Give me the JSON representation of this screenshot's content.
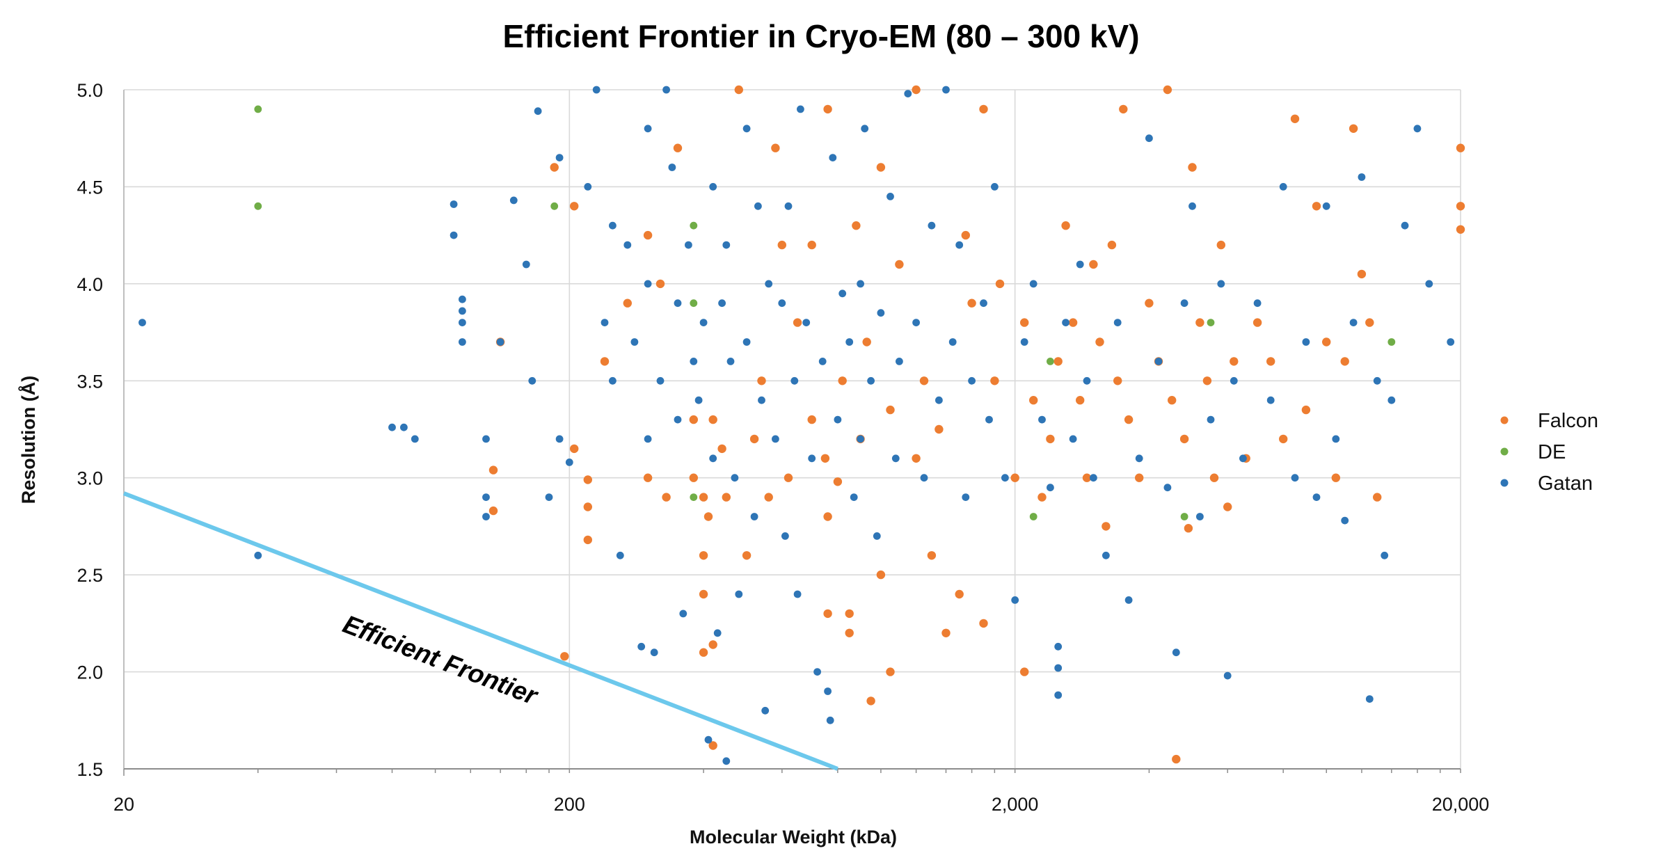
{
  "chart_data": {
    "type": "scatter",
    "title": "Efficient Frontier in Cryo-EM (80 – 300 kV)",
    "xlabel": "Molecular Weight (kDa)",
    "ylabel": "Resolution (Å)",
    "x_scale": "log",
    "xlim": [
      20,
      20000
    ],
    "ylim": [
      1.5,
      5.0
    ],
    "x_ticks": [
      20,
      200,
      2000,
      20000
    ],
    "x_tick_labels": [
      "20",
      "200",
      "2,000",
      "20,000"
    ],
    "y_ticks": [
      1.5,
      2.0,
      2.5,
      3.0,
      3.5,
      4.0,
      4.5,
      5.0
    ],
    "y_tick_labels": [
      "1.5",
      "2.0",
      "2.5",
      "3.0",
      "3.5",
      "4.0",
      "4.5",
      "5.0"
    ],
    "grid": true,
    "legend_position": "right",
    "annotation": {
      "text": "Efficient Frontier",
      "line": [
        [
          20,
          2.92
        ],
        [
          800,
          1.5
        ]
      ],
      "color": "#6cc8ec"
    },
    "series": [
      {
        "name": "Falcon",
        "color": "#ed7d31",
        "points": [
          [
            140,
            3.7
          ],
          [
            135,
            3.04
          ],
          [
            135,
            2.83
          ],
          [
            185,
            4.6
          ],
          [
            195,
            2.08
          ],
          [
            205,
            4.4
          ],
          [
            205,
            3.15
          ],
          [
            220,
            2.99
          ],
          [
            220,
            2.85
          ],
          [
            220,
            2.68
          ],
          [
            240,
            3.6
          ],
          [
            270,
            3.9
          ],
          [
            300,
            4.25
          ],
          [
            300,
            3.0
          ],
          [
            320,
            4.0
          ],
          [
            330,
            2.9
          ],
          [
            350,
            4.7
          ],
          [
            380,
            3.3
          ],
          [
            380,
            3.0
          ],
          [
            400,
            2.9
          ],
          [
            400,
            2.6
          ],
          [
            400,
            2.1
          ],
          [
            400,
            2.4
          ],
          [
            410,
            2.8
          ],
          [
            420,
            3.3
          ],
          [
            420,
            2.14
          ],
          [
            420,
            1.62
          ],
          [
            440,
            3.15
          ],
          [
            450,
            2.9
          ],
          [
            480,
            5.0
          ],
          [
            500,
            2.6
          ],
          [
            520,
            3.2
          ],
          [
            540,
            3.5
          ],
          [
            560,
            2.9
          ],
          [
            580,
            4.7
          ],
          [
            600,
            4.2
          ],
          [
            620,
            3.0
          ],
          [
            650,
            3.8
          ],
          [
            700,
            3.3
          ],
          [
            700,
            4.2
          ],
          [
            750,
            3.1
          ],
          [
            760,
            2.8
          ],
          [
            760,
            2.3
          ],
          [
            760,
            4.9
          ],
          [
            800,
            2.98
          ],
          [
            820,
            3.5
          ],
          [
            850,
            2.3
          ],
          [
            850,
            2.2
          ],
          [
            880,
            4.3
          ],
          [
            900,
            3.2
          ],
          [
            930,
            3.7
          ],
          [
            950,
            1.85
          ],
          [
            1000,
            2.5
          ],
          [
            1000,
            4.6
          ],
          [
            1050,
            2.0
          ],
          [
            1050,
            3.35
          ],
          [
            1100,
            4.1
          ],
          [
            1200,
            3.1
          ],
          [
            1200,
            5.0
          ],
          [
            1250,
            3.5
          ],
          [
            1300,
            2.6
          ],
          [
            1350,
            3.25
          ],
          [
            1400,
            2.2
          ],
          [
            1500,
            2.4
          ],
          [
            1550,
            4.25
          ],
          [
            1600,
            3.9
          ],
          [
            1700,
            4.9
          ],
          [
            1700,
            2.25
          ],
          [
            1800,
            3.5
          ],
          [
            1850,
            4.0
          ],
          [
            2000,
            3.0
          ],
          [
            2100,
            2.0
          ],
          [
            2100,
            3.8
          ],
          [
            2200,
            3.4
          ],
          [
            2300,
            2.9
          ],
          [
            2400,
            3.2
          ],
          [
            2500,
            3.6
          ],
          [
            2600,
            4.3
          ],
          [
            2700,
            3.8
          ],
          [
            2800,
            3.4
          ],
          [
            2900,
            3.0
          ],
          [
            3000,
            4.1
          ],
          [
            3100,
            3.7
          ],
          [
            3200,
            2.75
          ],
          [
            3300,
            4.2
          ],
          [
            3400,
            3.5
          ],
          [
            3500,
            4.9
          ],
          [
            3600,
            3.3
          ],
          [
            3800,
            3.0
          ],
          [
            4000,
            3.9
          ],
          [
            4200,
            3.6
          ],
          [
            4400,
            5.0
          ],
          [
            4500,
            3.4
          ],
          [
            4600,
            1.55
          ],
          [
            4800,
            3.2
          ],
          [
            4900,
            2.74
          ],
          [
            5000,
            4.6
          ],
          [
            5200,
            3.8
          ],
          [
            5400,
            3.5
          ],
          [
            5600,
            3.0
          ],
          [
            5800,
            4.2
          ],
          [
            6000,
            2.85
          ],
          [
            6200,
            3.6
          ],
          [
            6600,
            3.1
          ],
          [
            7000,
            3.8
          ],
          [
            7500,
            3.6
          ],
          [
            8000,
            3.2
          ],
          [
            8500,
            4.85
          ],
          [
            9000,
            3.35
          ],
          [
            9500,
            4.4
          ],
          [
            10000,
            3.7
          ],
          [
            10500,
            3.0
          ],
          [
            11000,
            3.6
          ],
          [
            11500,
            4.8
          ],
          [
            12000,
            4.05
          ],
          [
            12500,
            3.8
          ],
          [
            13000,
            2.9
          ],
          [
            20000,
            4.7
          ],
          [
            20000,
            4.4
          ],
          [
            20000,
            4.28
          ]
        ]
      },
      {
        "name": "DE",
        "color": "#70ad47",
        "points": [
          [
            40,
            4.9
          ],
          [
            40,
            4.4
          ],
          [
            185,
            4.4
          ],
          [
            380,
            4.3
          ],
          [
            380,
            3.9
          ],
          [
            380,
            2.9
          ],
          [
            2200,
            2.8
          ],
          [
            2400,
            3.6
          ],
          [
            4800,
            2.8
          ],
          [
            5500,
            3.8
          ],
          [
            14000,
            3.7
          ]
        ]
      },
      {
        "name": "Gatan",
        "color": "#2e75b6",
        "points": [
          [
            22,
            3.8
          ],
          [
            40,
            2.6
          ],
          [
            80,
            3.26
          ],
          [
            85,
            3.26
          ],
          [
            90,
            3.2
          ],
          [
            110,
            4.41
          ],
          [
            110,
            4.25
          ],
          [
            115,
            3.92
          ],
          [
            115,
            3.86
          ],
          [
            115,
            3.8
          ],
          [
            115,
            3.7
          ],
          [
            130,
            3.2
          ],
          [
            130,
            2.9
          ],
          [
            130,
            2.8
          ],
          [
            140,
            3.7
          ],
          [
            150,
            4.43
          ],
          [
            160,
            4.1
          ],
          [
            165,
            3.5
          ],
          [
            170,
            4.89
          ],
          [
            180,
            2.9
          ],
          [
            190,
            4.65
          ],
          [
            190,
            3.2
          ],
          [
            200,
            3.08
          ],
          [
            220,
            4.5
          ],
          [
            230,
            5.0
          ],
          [
            240,
            3.8
          ],
          [
            250,
            3.5
          ],
          [
            250,
            4.3
          ],
          [
            260,
            2.6
          ],
          [
            270,
            4.2
          ],
          [
            280,
            3.7
          ],
          [
            290,
            2.13
          ],
          [
            300,
            4.8
          ],
          [
            300,
            4.0
          ],
          [
            300,
            3.2
          ],
          [
            310,
            2.1
          ],
          [
            320,
            3.5
          ],
          [
            330,
            5.0
          ],
          [
            340,
            4.6
          ],
          [
            350,
            3.9
          ],
          [
            350,
            3.3
          ],
          [
            360,
            2.3
          ],
          [
            370,
            4.2
          ],
          [
            380,
            3.6
          ],
          [
            390,
            3.4
          ],
          [
            400,
            3.8
          ],
          [
            410,
            1.65
          ],
          [
            420,
            4.5
          ],
          [
            420,
            3.1
          ],
          [
            430,
            2.2
          ],
          [
            440,
            3.9
          ],
          [
            450,
            4.2
          ],
          [
            450,
            1.54
          ],
          [
            460,
            3.6
          ],
          [
            470,
            3.0
          ],
          [
            480,
            2.4
          ],
          [
            500,
            4.8
          ],
          [
            500,
            3.7
          ],
          [
            520,
            2.8
          ],
          [
            530,
            4.4
          ],
          [
            540,
            3.4
          ],
          [
            550,
            1.8
          ],
          [
            560,
            4.0
          ],
          [
            580,
            3.2
          ],
          [
            600,
            3.9
          ],
          [
            610,
            2.7
          ],
          [
            620,
            4.4
          ],
          [
            640,
            3.5
          ],
          [
            650,
            2.4
          ],
          [
            660,
            4.9
          ],
          [
            680,
            3.8
          ],
          [
            700,
            3.1
          ],
          [
            720,
            2.0
          ],
          [
            740,
            3.6
          ],
          [
            760,
            1.9
          ],
          [
            770,
            1.75
          ],
          [
            780,
            4.65
          ],
          [
            800,
            3.3
          ],
          [
            820,
            3.95
          ],
          [
            850,
            3.7
          ],
          [
            870,
            2.9
          ],
          [
            900,
            4.0
          ],
          [
            900,
            3.2
          ],
          [
            920,
            4.8
          ],
          [
            950,
            3.5
          ],
          [
            980,
            2.7
          ],
          [
            1000,
            3.85
          ],
          [
            1050,
            4.45
          ],
          [
            1080,
            3.1
          ],
          [
            1100,
            3.6
          ],
          [
            1150,
            4.98
          ],
          [
            1200,
            3.8
          ],
          [
            1250,
            3.0
          ],
          [
            1300,
            4.3
          ],
          [
            1350,
            3.4
          ],
          [
            1400,
            5.0
          ],
          [
            1450,
            3.7
          ],
          [
            1500,
            4.2
          ],
          [
            1550,
            2.9
          ],
          [
            1600,
            3.5
          ],
          [
            1700,
            3.9
          ],
          [
            1750,
            3.3
          ],
          [
            1800,
            4.5
          ],
          [
            1900,
            3.0
          ],
          [
            2000,
            2.37
          ],
          [
            2100,
            3.7
          ],
          [
            2200,
            4.0
          ],
          [
            2300,
            3.3
          ],
          [
            2400,
            2.95
          ],
          [
            2500,
            2.13
          ],
          [
            2500,
            1.88
          ],
          [
            2500,
            2.02
          ],
          [
            2600,
            3.8
          ],
          [
            2700,
            3.2
          ],
          [
            2800,
            4.1
          ],
          [
            2900,
            3.5
          ],
          [
            3000,
            3.0
          ],
          [
            3200,
            2.6
          ],
          [
            3400,
            3.8
          ],
          [
            3600,
            2.37
          ],
          [
            3800,
            3.1
          ],
          [
            4000,
            4.75
          ],
          [
            4200,
            3.6
          ],
          [
            4400,
            2.95
          ],
          [
            4600,
            2.1
          ],
          [
            4800,
            3.9
          ],
          [
            5000,
            4.4
          ],
          [
            5200,
            2.8
          ],
          [
            5500,
            3.3
          ],
          [
            5800,
            4.0
          ],
          [
            6000,
            1.98
          ],
          [
            6200,
            3.5
          ],
          [
            6500,
            3.1
          ],
          [
            7000,
            3.9
          ],
          [
            7500,
            3.4
          ],
          [
            8000,
            4.5
          ],
          [
            8500,
            3.0
          ],
          [
            9000,
            3.7
          ],
          [
            9500,
            2.9
          ],
          [
            10000,
            4.4
          ],
          [
            10500,
            3.2
          ],
          [
            11000,
            2.78
          ],
          [
            11500,
            3.8
          ],
          [
            12000,
            4.55
          ],
          [
            12500,
            1.86
          ],
          [
            13000,
            3.5
          ],
          [
            13500,
            2.6
          ],
          [
            14000,
            3.4
          ],
          [
            15000,
            4.3
          ],
          [
            16000,
            4.8
          ],
          [
            17000,
            4.0
          ],
          [
            19000,
            3.7
          ]
        ]
      }
    ]
  }
}
